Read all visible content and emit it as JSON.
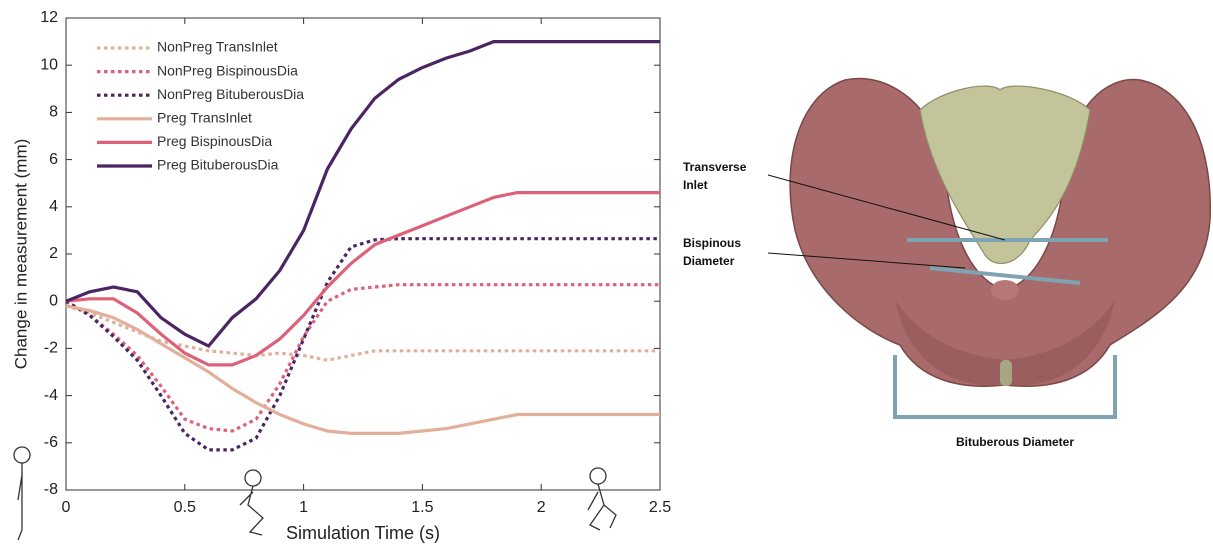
{
  "chart_data": {
    "type": "line",
    "xlabel": "Simulation Time (s)",
    "ylabel": "Change in measurement (mm)",
    "x": [
      0,
      0.1,
      0.2,
      0.3,
      0.4,
      0.5,
      0.6,
      0.7,
      0.8,
      0.9,
      1.0,
      1.1,
      1.2,
      1.3,
      1.4,
      1.5,
      1.6,
      1.7,
      1.8,
      1.9,
      2.0,
      2.1,
      2.2,
      2.3,
      2.4,
      2.5
    ],
    "series": [
      {
        "name": "NonPreg TransInlet",
        "color": "#e2b09a",
        "style": "dotted",
        "values": [
          -0.2,
          -0.5,
          -0.9,
          -1.3,
          -1.7,
          -1.9,
          -2.1,
          -2.2,
          -2.3,
          -2.2,
          -2.3,
          -2.5,
          -2.3,
          -2.1,
          -2.1,
          -2.1,
          -2.1,
          -2.1,
          -2.1,
          -2.1,
          -2.1,
          -2.1,
          -2.1,
          -2.1,
          -2.1,
          -2.1
        ]
      },
      {
        "name": "NonPreg BispinousDia",
        "color": "#dd6179",
        "style": "dotted",
        "values": [
          0,
          -0.6,
          -1.4,
          -2.3,
          -3.6,
          -5.0,
          -5.4,
          -5.5,
          -5.0,
          -3.5,
          -1.5,
          0,
          0.5,
          0.6,
          0.7,
          0.7,
          0.7,
          0.7,
          0.7,
          0.7,
          0.7,
          0.7,
          0.7,
          0.7,
          0.7,
          0.7
        ]
      },
      {
        "name": "NonPreg BituberousDia",
        "color": "#4b2463",
        "style": "dotted",
        "values": [
          0,
          -0.6,
          -1.5,
          -2.5,
          -4.0,
          -5.6,
          -6.3,
          -6.3,
          -5.8,
          -4.0,
          -1.6,
          0.8,
          2.3,
          2.6,
          2.65,
          2.65,
          2.65,
          2.65,
          2.65,
          2.65,
          2.65,
          2.65,
          2.65,
          2.65,
          2.65,
          2.65
        ]
      },
      {
        "name": "Preg TransInlet",
        "color": "#e2b09a",
        "style": "solid",
        "values": [
          -0.2,
          -0.4,
          -0.7,
          -1.2,
          -1.8,
          -2.4,
          -3.0,
          -3.7,
          -4.3,
          -4.8,
          -5.2,
          -5.5,
          -5.6,
          -5.6,
          -5.6,
          -5.5,
          -5.4,
          -5.2,
          -5.0,
          -4.8,
          -4.8,
          -4.8,
          -4.8,
          -4.8,
          -4.8,
          -4.8
        ]
      },
      {
        "name": "Preg BispinousDia",
        "color": "#dd6179",
        "style": "solid",
        "values": [
          0,
          0.1,
          0.1,
          -0.5,
          -1.4,
          -2.2,
          -2.7,
          -2.7,
          -2.3,
          -1.6,
          -0.6,
          0.6,
          1.6,
          2.4,
          2.8,
          3.2,
          3.6,
          4.0,
          4.4,
          4.6,
          4.6,
          4.6,
          4.6,
          4.6,
          4.6,
          4.6
        ]
      },
      {
        "name": "Preg BituberousDia",
        "color": "#4b2463",
        "style": "solid",
        "values": [
          0,
          0.4,
          0.6,
          0.4,
          -0.7,
          -1.4,
          -1.9,
          -0.7,
          0.1,
          1.3,
          3.0,
          5.6,
          7.3,
          8.6,
          9.4,
          9.9,
          10.3,
          10.6,
          11,
          11,
          11,
          11,
          11,
          11,
          11,
          11
        ]
      }
    ],
    "xlim": [
      0,
      2.5
    ],
    "xticks": [
      0,
      0.5,
      1,
      1.5,
      2,
      2.5
    ],
    "ylim": [
      -8,
      12
    ],
    "yticks": [
      -8,
      -6,
      -4,
      -2,
      0,
      2,
      4,
      6,
      8,
      10,
      12
    ],
    "legend": "upper-left",
    "annotations": [
      "Transverse",
      "Inlet",
      "Bispinous",
      "Diameter",
      "Bituberous Diameter"
    ]
  }
}
